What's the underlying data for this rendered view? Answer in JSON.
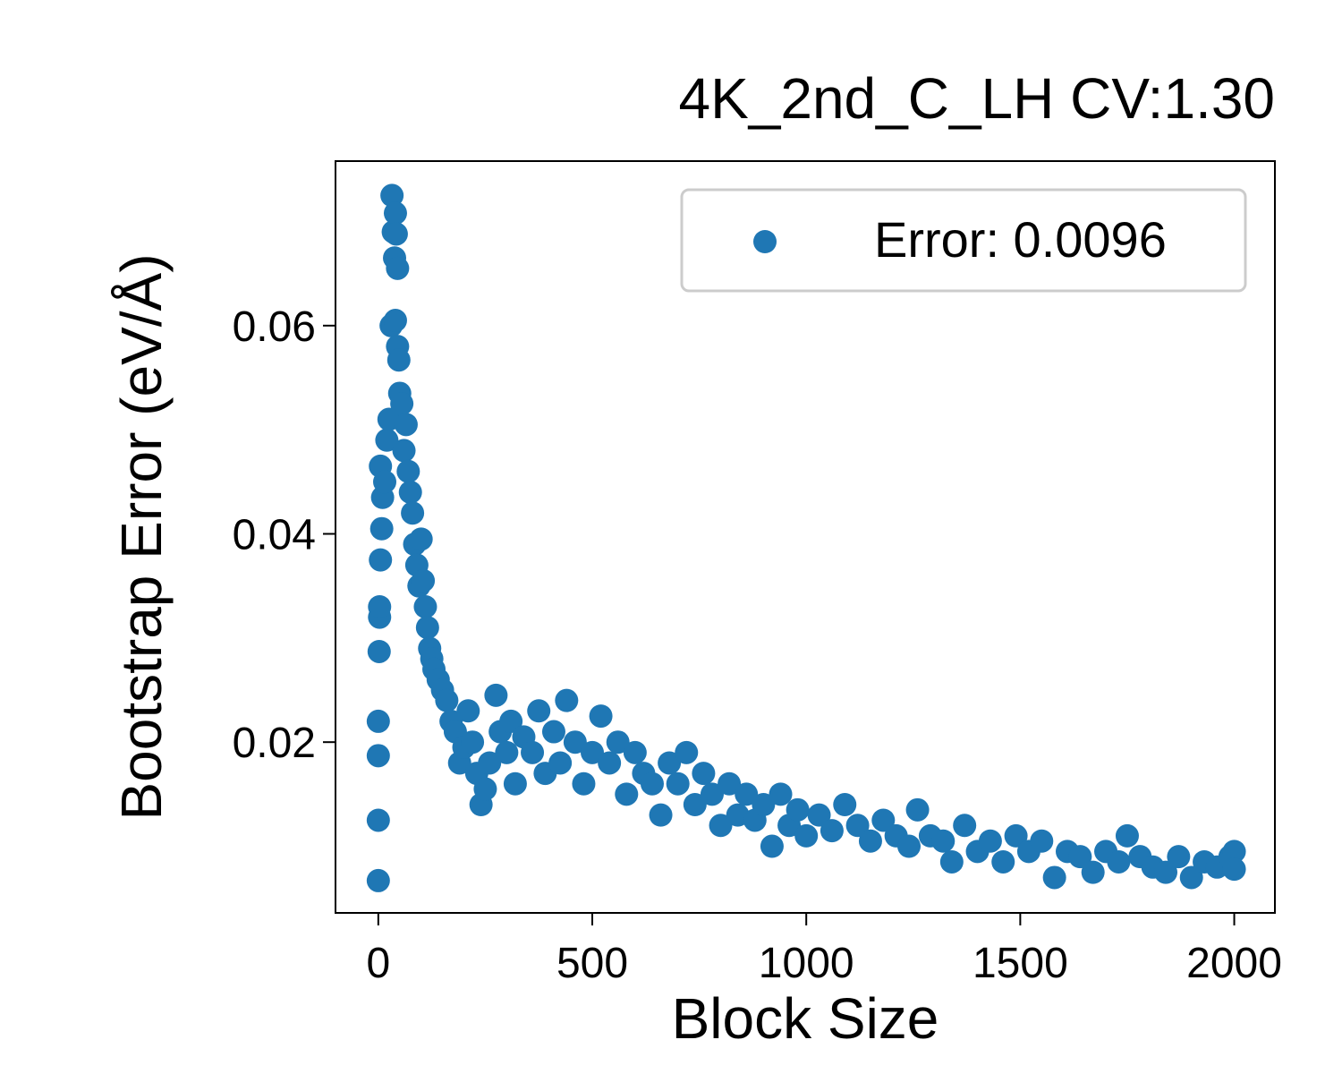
{
  "chart_data": {
    "type": "scatter",
    "title": "4K_2nd_C_LH CV:1.30",
    "x_label": "Block Size",
    "y_label": "Bootstrap Error (eV/Å)",
    "xlim": [
      -100,
      2095
    ],
    "ylim": [
      0.0036,
      0.0758
    ],
    "xticks": [
      0,
      500,
      1000,
      1500,
      2000
    ],
    "yticks": [
      0.02,
      0.04,
      0.06
    ],
    "legend": "upper right",
    "series": [
      {
        "name": "Error: 0.0096",
        "color": "#1f77b4",
        "x": [
          0,
          0,
          0,
          0,
          2,
          3,
          3,
          5,
          5,
          8,
          10,
          15,
          20,
          25,
          30,
          32,
          35,
          38,
          40,
          42,
          45,
          40,
          45,
          48,
          50,
          55,
          60,
          65,
          70,
          75,
          80,
          85,
          90,
          95,
          100,
          105,
          110,
          115,
          120,
          125,
          130,
          140,
          150,
          160,
          170,
          180,
          190,
          200,
          210,
          220,
          230,
          240,
          250,
          260,
          275,
          285,
          300,
          310,
          320,
          340,
          360,
          375,
          390,
          410,
          425,
          440,
          460,
          480,
          500,
          520,
          540,
          560,
          580,
          600,
          620,
          640,
          660,
          680,
          700,
          720,
          740,
          760,
          780,
          800,
          820,
          840,
          860,
          880,
          900,
          920,
          940,
          960,
          980,
          1000,
          1030,
          1060,
          1090,
          1120,
          1150,
          1180,
          1210,
          1240,
          1260,
          1290,
          1320,
          1340,
          1370,
          1400,
          1430,
          1460,
          1490,
          1520,
          1550,
          1580,
          1610,
          1640,
          1670,
          1700,
          1730,
          1750,
          1780,
          1810,
          1840,
          1870,
          1900,
          1930,
          1960,
          1990,
          2000,
          2000
        ],
        "values": [
          0.0067,
          0.0125,
          0.0187,
          0.022,
          0.0287,
          0.032,
          0.033,
          0.0375,
          0.0465,
          0.0405,
          0.0435,
          0.045,
          0.049,
          0.051,
          0.06,
          0.0725,
          0.069,
          0.0665,
          0.0708,
          0.0688,
          0.0655,
          0.0605,
          0.058,
          0.0567,
          0.0535,
          0.0525,
          0.048,
          0.0505,
          0.046,
          0.044,
          0.042,
          0.039,
          0.037,
          0.035,
          0.0395,
          0.0355,
          0.033,
          0.031,
          0.029,
          0.028,
          0.027,
          0.026,
          0.025,
          0.024,
          0.022,
          0.021,
          0.018,
          0.0195,
          0.023,
          0.02,
          0.017,
          0.014,
          0.0155,
          0.018,
          0.0245,
          0.021,
          0.019,
          0.022,
          0.016,
          0.0205,
          0.019,
          0.023,
          0.017,
          0.021,
          0.018,
          0.024,
          0.02,
          0.016,
          0.019,
          0.0225,
          0.018,
          0.02,
          0.015,
          0.019,
          0.017,
          0.016,
          0.013,
          0.018,
          0.016,
          0.019,
          0.014,
          0.017,
          0.015,
          0.012,
          0.016,
          0.013,
          0.015,
          0.0125,
          0.014,
          0.01,
          0.015,
          0.012,
          0.0135,
          0.011,
          0.013,
          0.0115,
          0.014,
          0.012,
          0.0105,
          0.0125,
          0.011,
          0.01,
          0.0135,
          0.011,
          0.0105,
          0.0085,
          0.012,
          0.0095,
          0.0105,
          0.0085,
          0.011,
          0.0095,
          0.0105,
          0.007,
          0.0095,
          0.009,
          0.0075,
          0.0095,
          0.0085,
          0.011,
          0.009,
          0.008,
          0.0075,
          0.009,
          0.007,
          0.0085,
          0.008,
          0.009,
          0.0095,
          0.0078
        ]
      }
    ]
  }
}
